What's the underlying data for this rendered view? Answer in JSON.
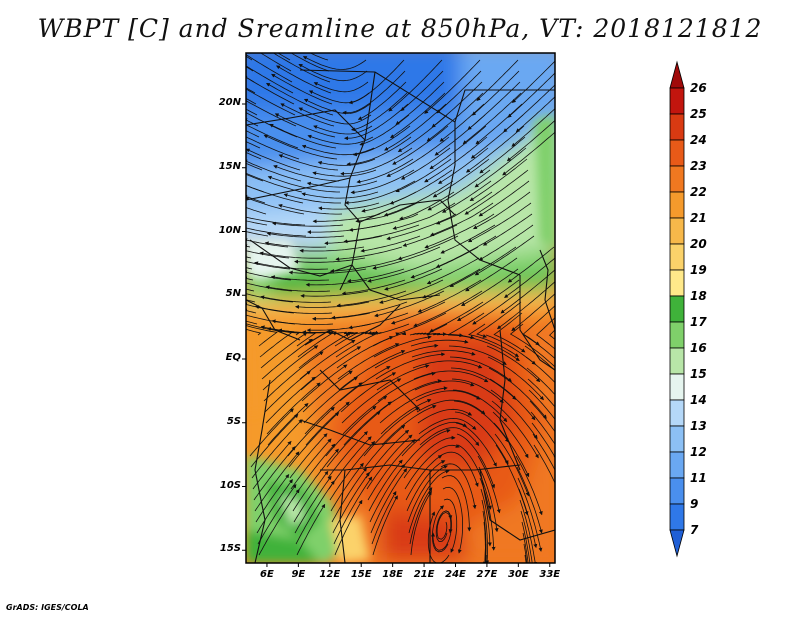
{
  "title": "WBPT [C] and Sreamline at 850hPa, VT: 2018121812",
  "credit": "GrADS: IGES/COLA",
  "map": {
    "lat_ticks": [
      "20N",
      "15N",
      "10N",
      "5N",
      "EQ",
      "5S",
      "10S",
      "15S"
    ],
    "lon_ticks": [
      "6E",
      "9E",
      "12E",
      "15E",
      "18E",
      "21E",
      "24E",
      "27E",
      "30E",
      "33E"
    ],
    "lat_range": [
      -16,
      24
    ],
    "lon_range": [
      4,
      33.5
    ]
  },
  "colorbar": {
    "levels": [
      "7",
      "9",
      "11",
      "12",
      "13",
      "14",
      "15",
      "16",
      "17",
      "18",
      "19",
      "20",
      "21",
      "22",
      "23",
      "24",
      "25",
      "26"
    ],
    "colors": [
      "#1f5fd6",
      "#2f78e8",
      "#4a8fee",
      "#6aa8f2",
      "#8cc0f5",
      "#b5d8f8",
      "#e6f5ef",
      "#b8e6a8",
      "#7fd06a",
      "#3fb23a",
      "#ffe98a",
      "#fbd26a",
      "#f7b84a",
      "#f59a2c",
      "#f07820",
      "#e85a18",
      "#d93a12",
      "#c2150e",
      "#a00a0a"
    ]
  }
}
